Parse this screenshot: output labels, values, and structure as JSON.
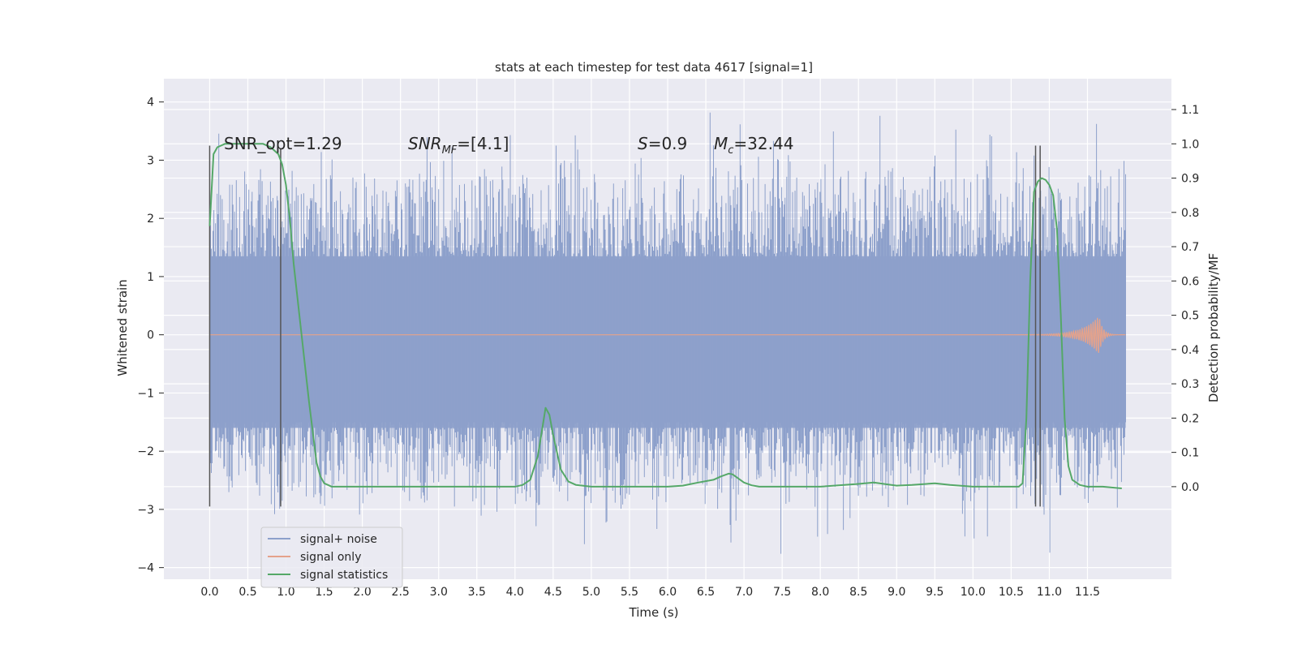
{
  "chart_data": {
    "type": "line",
    "title": "stats at each timestep for test data 4617 [signal=1]",
    "xlabel": "Time (s)",
    "ylabel": "Whitened strain",
    "ylabel_right": "Detection probability/MF",
    "xlim": [
      -0.6,
      12.6
    ],
    "ylim": [
      -4.2,
      4.4
    ],
    "ylim_right": [
      -0.27,
      1.19
    ],
    "grid": true,
    "legend_position": "lower-left",
    "x_ticks": [
      "0.0",
      "0.5",
      "1.0",
      "1.5",
      "2.0",
      "2.5",
      "3.0",
      "3.5",
      "4.0",
      "4.5",
      "5.0",
      "5.5",
      "6.0",
      "6.5",
      "7.0",
      "7.5",
      "8.0",
      "8.5",
      "9.0",
      "9.5",
      "10.0",
      "10.5",
      "11.0",
      "11.5"
    ],
    "y_ticks": [
      "4",
      "3",
      "2",
      "1",
      "0",
      "−1",
      "−2",
      "−3",
      "−4"
    ],
    "y_ticks_right": [
      "1.1",
      "1.0",
      "0.9",
      "0.8",
      "0.7",
      "0.6",
      "0.5",
      "0.4",
      "0.3",
      "0.2",
      "0.1",
      "0.0"
    ],
    "annotations": {
      "snr_opt": "SNR_opt=1.29",
      "snr_mf_main": "SNR",
      "snr_mf_sub": "MF",
      "snr_mf_val": "=[4.1]",
      "s_sym": "S",
      "s_val": "=0.9",
      "mc_sym": "M",
      "mc_sub": "c",
      "mc_val": "=32.44"
    },
    "series": [
      {
        "name": "signal+ noise",
        "color": "#8da0cb",
        "axis": "left",
        "x_range": [
          0.0,
          12.0
        ],
        "envelope_upper": [
          2.6,
          2.9,
          3.1,
          2.9,
          3.0,
          2.7,
          3.2,
          2.8,
          2.9,
          3.1,
          2.7,
          2.9,
          3.0,
          2.8,
          3.2,
          2.9,
          2.7,
          2.8,
          3.0,
          3.3,
          2.9,
          2.8,
          2.7,
          3.0,
          3.1,
          2.9,
          2.8,
          3.0,
          3.2,
          2.7,
          2.9,
          3.1,
          2.8,
          3.0,
          2.9,
          2.8,
          3.0,
          3.3,
          2.9,
          3.1,
          2.7,
          2.8,
          3.0,
          3.2,
          2.9,
          3.1,
          2.7,
          2.8,
          2.9,
          3.0
        ],
        "envelope_lower": [
          -2.7,
          -3.0,
          -2.8,
          -3.1,
          -2.7,
          -2.9,
          -3.0,
          -2.8,
          -3.2,
          -2.7,
          -2.9,
          -3.0,
          -2.8,
          -3.1,
          -2.9,
          -2.7,
          -3.0,
          -3.4,
          -2.8,
          -2.9,
          -3.1,
          -2.7,
          -3.0,
          -2.8,
          -3.6,
          -2.9,
          -2.7,
          -3.0,
          -3.3,
          -2.8,
          -2.9,
          -3.1,
          -2.7,
          -3.5,
          -2.8,
          -3.0,
          -2.9,
          -2.7,
          -3.0,
          -2.8,
          -2.9,
          -3.1,
          -2.7,
          -2.8,
          -3.0,
          -3.2,
          -2.8,
          -2.9,
          -2.7,
          -2.6
        ],
        "band": [
          1.35,
          -1.6
        ]
      },
      {
        "name": "signal only",
        "color": "#e5a28b",
        "axis": "left",
        "chirp_peak_x": 11.65,
        "chirp_amplitude": 0.33
      },
      {
        "name": "signal statistics",
        "color": "#55a868",
        "axis": "right",
        "x": [
          0.0,
          0.05,
          0.1,
          0.2,
          0.3,
          0.4,
          0.5,
          0.6,
          0.7,
          0.8,
          0.85,
          0.9,
          0.95,
          1.0,
          1.05,
          1.1,
          1.2,
          1.3,
          1.4,
          1.45,
          1.5,
          1.6,
          1.8,
          2.0,
          2.5,
          3.0,
          3.5,
          4.0,
          4.1,
          4.2,
          4.3,
          4.35,
          4.4,
          4.45,
          4.5,
          4.6,
          4.7,
          4.8,
          5.0,
          5.5,
          6.0,
          6.2,
          6.4,
          6.6,
          6.7,
          6.8,
          6.85,
          6.9,
          7.0,
          7.1,
          7.2,
          7.5,
          8.0,
          8.5,
          8.7,
          8.9,
          9.0,
          9.2,
          9.5,
          9.7,
          10.0,
          10.5,
          10.6,
          10.65,
          10.7,
          10.75,
          10.8,
          10.85,
          10.9,
          10.95,
          11.0,
          11.05,
          11.1,
          11.15,
          11.2,
          11.25,
          11.3,
          11.4,
          11.5,
          11.7,
          11.95
        ],
        "y": [
          0.76,
          0.97,
          0.99,
          1.0,
          1.0,
          1.0,
          1.0,
          1.0,
          1.0,
          0.99,
          0.98,
          0.97,
          0.94,
          0.88,
          0.78,
          0.65,
          0.45,
          0.25,
          0.07,
          0.03,
          0.01,
          0.0,
          0.0,
          0.0,
          0.0,
          0.0,
          0.0,
          0.0,
          0.005,
          0.02,
          0.09,
          0.16,
          0.23,
          0.21,
          0.15,
          0.05,
          0.015,
          0.005,
          0.0,
          0.0,
          0.0,
          0.003,
          0.012,
          0.02,
          0.03,
          0.038,
          0.036,
          0.028,
          0.012,
          0.004,
          0.0,
          0.0,
          0.0,
          0.008,
          0.012,
          0.006,
          0.003,
          0.005,
          0.01,
          0.005,
          0.0,
          0.0,
          0.0,
          0.01,
          0.2,
          0.6,
          0.86,
          0.89,
          0.9,
          0.895,
          0.88,
          0.85,
          0.75,
          0.5,
          0.2,
          0.06,
          0.02,
          0.005,
          0.0,
          0.0,
          -0.005
        ]
      }
    ],
    "vertical_markers": [
      {
        "x": 0.0,
        "y_top": 3.25,
        "y_bottom": -2.95
      },
      {
        "x": 0.93,
        "y_top": 3.2,
        "y_bottom": -2.95
      },
      {
        "x": 10.82,
        "y_top": 3.25,
        "y_bottom": -2.95
      },
      {
        "x": 10.88,
        "y_top": 3.25,
        "y_bottom": -2.95
      }
    ]
  }
}
